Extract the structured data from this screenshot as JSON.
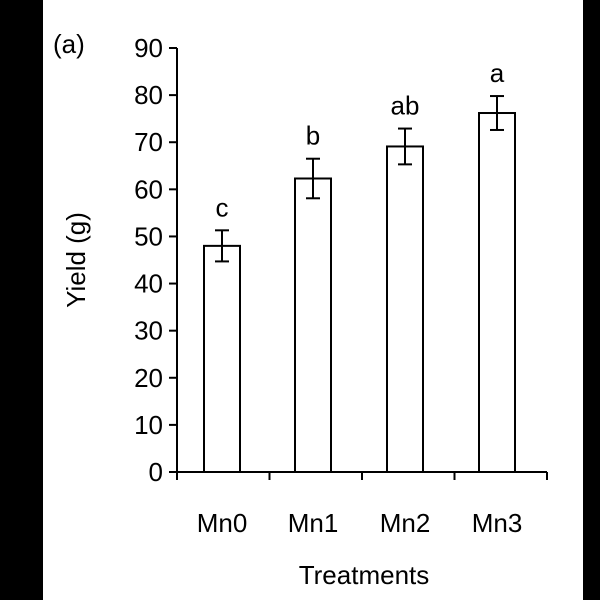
{
  "colors": {
    "frame": "#000000",
    "plot_background": "#ffffff",
    "bar_fill": "#ffffff",
    "stroke": "#000000"
  },
  "chart_data": {
    "type": "bar",
    "panel_label": "(a)",
    "title": "",
    "xlabel": "Treatments",
    "ylabel": "Yield (g)",
    "ylim": [
      0,
      90
    ],
    "yticks": [
      0,
      10,
      20,
      30,
      40,
      50,
      60,
      70,
      80,
      90
    ],
    "categories": [
      "Mn0",
      "Mn1",
      "Mn2",
      "Mn3"
    ],
    "values": [
      48,
      62.3,
      69.1,
      76.2
    ],
    "error": [
      3.3,
      4.2,
      3.8,
      3.6
    ],
    "significance_letters": [
      "c",
      "b",
      "ab",
      "a"
    ],
    "grid": false,
    "legend": "none"
  }
}
